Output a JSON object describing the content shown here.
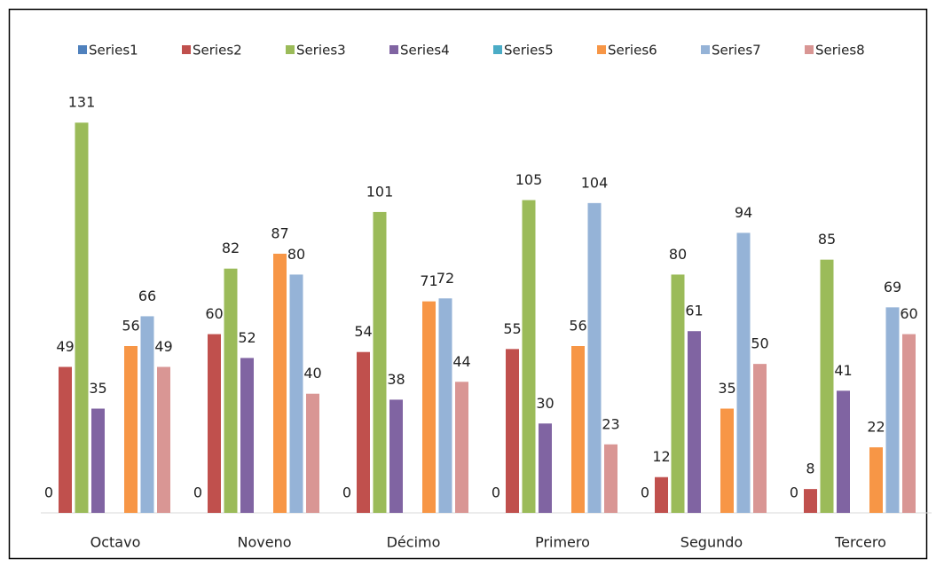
{
  "chart_data": {
    "type": "bar",
    "categories": [
      "Octavo",
      "Noveno",
      "Décimo",
      "Primero",
      "Segundo",
      "Tercero"
    ],
    "series": [
      {
        "name": "Series1",
        "color": "#4f81bd",
        "values": [
          0,
          0,
          0,
          0,
          0,
          0
        ]
      },
      {
        "name": "Series2",
        "color": "#c0504d",
        "values": [
          49,
          60,
          54,
          55,
          12,
          8
        ]
      },
      {
        "name": "Series3",
        "color": "#9bbb59",
        "values": [
          131,
          82,
          101,
          105,
          80,
          85
        ]
      },
      {
        "name": "Series4",
        "color": "#8064a2",
        "values": [
          35,
          52,
          38,
          30,
          61,
          41
        ]
      },
      {
        "name": "Series5",
        "color": "#4bacc6",
        "values": [
          null,
          null,
          null,
          null,
          null,
          null
        ]
      },
      {
        "name": "Series6",
        "color": "#f79646",
        "values": [
          56,
          87,
          71,
          56,
          35,
          22
        ]
      },
      {
        "name": "Series7",
        "color": "#95b3d7",
        "values": [
          66,
          80,
          72,
          104,
          94,
          69
        ]
      },
      {
        "name": "Series8",
        "color": "#d99694",
        "values": [
          49,
          40,
          44,
          23,
          50,
          60
        ]
      }
    ],
    "ylim": [
      0,
      140
    ],
    "legend": "top"
  }
}
